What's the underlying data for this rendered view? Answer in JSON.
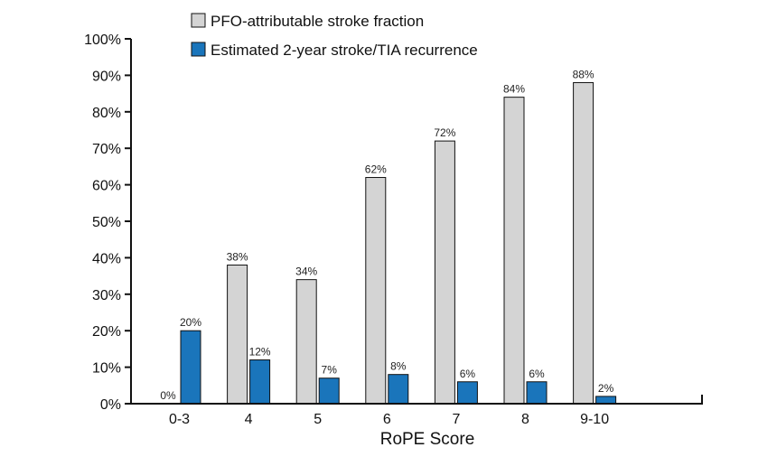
{
  "chart_data": {
    "type": "bar",
    "title": "",
    "xlabel": "RoPE Score",
    "ylabel": "",
    "categories": [
      "0-3",
      "4",
      "5",
      "6",
      "7",
      "8",
      "9-10"
    ],
    "ylim": [
      0,
      100
    ],
    "yticks": [
      0,
      10,
      20,
      30,
      40,
      50,
      60,
      70,
      80,
      90,
      100
    ],
    "ytick_labels": [
      "0%",
      "10%",
      "20%",
      "30%",
      "40%",
      "50%",
      "60%",
      "70%",
      "80%",
      "90%",
      "100%"
    ],
    "value_suffix": "%",
    "legend_position": "top-left",
    "grid": false,
    "series": [
      {
        "name": "PFO-attributable stroke fraction",
        "color": "#d4d4d4",
        "values": [
          0,
          38,
          34,
          62,
          72,
          84,
          88
        ]
      },
      {
        "name": "Estimated 2-year stroke/TIA recurrence",
        "color": "#1a75bb",
        "values": [
          20,
          12,
          7,
          8,
          6,
          6,
          2
        ]
      }
    ]
  }
}
